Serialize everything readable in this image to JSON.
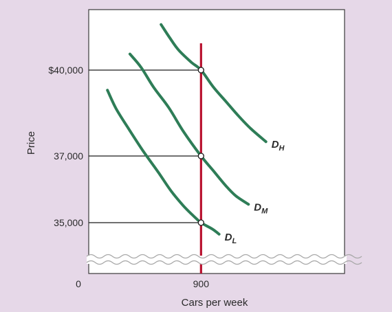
{
  "chart_data": {
    "type": "line",
    "xlabel": "Cars per week",
    "ylabel": "Price",
    "origin_label": "0",
    "xlim": [
      0,
      2050
    ],
    "x_ticks": [
      900
    ],
    "x_tick_labels": [
      "900"
    ],
    "y_ticks": [
      35000,
      37000,
      40000
    ],
    "y_tick_labels": [
      "35,000",
      "37,000",
      "$40,000"
    ],
    "axis_break": true,
    "grid": false,
    "legend": "none",
    "supply": {
      "x": 900,
      "color": "#b8102e"
    },
    "series": [
      {
        "name": "D",
        "subscript": "H",
        "color": "#2e7d57",
        "x": [
          580,
          650,
          720,
          820,
          900,
          1000,
          1100,
          1200,
          1300,
          1420
        ],
        "y": [
          41700,
          41200,
          40750,
          40300,
          40000,
          39400,
          38900,
          38400,
          37950,
          37500
        ]
      },
      {
        "name": "D",
        "subscript": "M",
        "color": "#2e7d57",
        "x": [
          330,
          420,
          520,
          640,
          760,
          900,
          1000,
          1100,
          1180,
          1280
        ],
        "y": [
          40600,
          40100,
          39400,
          38700,
          37850,
          37000,
          36550,
          36100,
          35800,
          35550
        ]
      },
      {
        "name": "D",
        "subscript": "L",
        "color": "#2e7d57",
        "x": [
          150,
          220,
          320,
          440,
          560,
          660,
          760,
          840,
          900,
          990,
          1045
        ],
        "y": [
          39300,
          38650,
          37950,
          37150,
          36500,
          35950,
          35500,
          35200,
          35000,
          34780,
          34600
        ]
      }
    ],
    "equilibria": [
      {
        "x": 900,
        "y": 40000
      },
      {
        "x": 900,
        "y": 37000
      },
      {
        "x": 900,
        "y": 35000
      }
    ]
  }
}
